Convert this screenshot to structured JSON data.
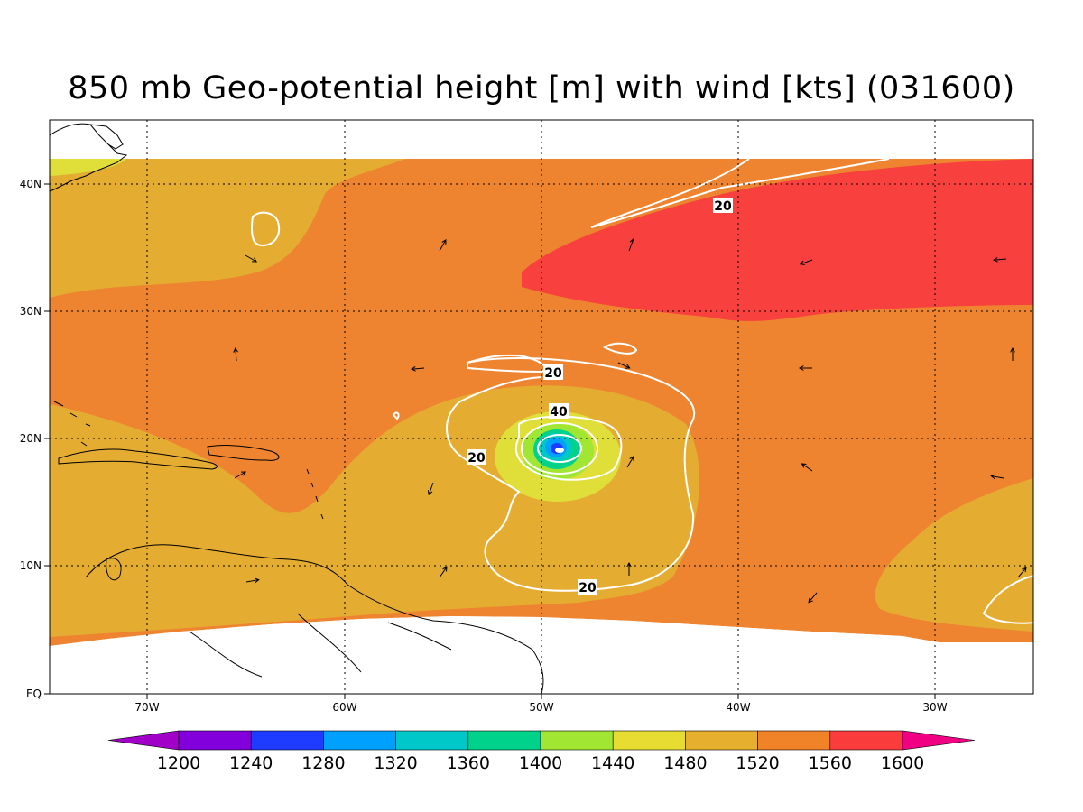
{
  "title": "850 mb Geo-potential height [m] with wind [kts] (031600)",
  "map": {
    "lon_labels": [
      "70W",
      "60W",
      "50W",
      "40W",
      "30W"
    ],
    "lat_labels": [
      "40N",
      "30N",
      "20N",
      "10N",
      "EQ"
    ],
    "contour_labels": [
      "20",
      "20",
      "40",
      "20",
      "20"
    ],
    "colors": {
      "h1480": "#e0de38",
      "h1520": "#e4ad32",
      "h1560": "#ee8430",
      "h1600": "#f8403f",
      "contour": "#ffffff",
      "coast": "#000000"
    }
  },
  "legend": {
    "labels": [
      "1200",
      "1240",
      "1280",
      "1320",
      "1360",
      "1400",
      "1440",
      "1480",
      "1520",
      "1560",
      "1600"
    ],
    "colors": [
      "#a000c8",
      "#8200dc",
      "#1e3cff",
      "#00a0ff",
      "#00c8c8",
      "#00d28c",
      "#a0e632",
      "#e6dc32",
      "#e6af2d",
      "#f08228",
      "#fa3c3c",
      "#f00082"
    ]
  }
}
